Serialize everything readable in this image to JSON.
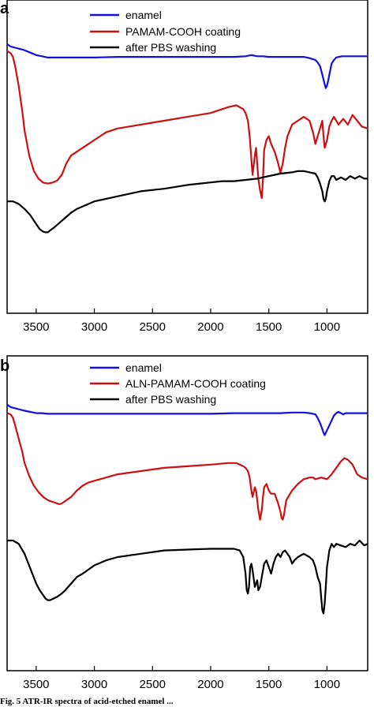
{
  "caption": "Fig. 5 ATR-IR spectra of acid-etched enamel ...",
  "chart_data": [
    {
      "type": "line",
      "panel": "a",
      "xlim": [
        3750,
        650
      ],
      "ylim": [
        0,
        100
      ],
      "xticks": [
        3500,
        3000,
        2500,
        2000,
        1500,
        1000
      ],
      "xlabel": "",
      "ylabel": "",
      "legend_position": "top-right",
      "series": [
        {
          "name": "enamel",
          "color": "#1010e0",
          "x": [
            3750,
            3720,
            3680,
            3640,
            3600,
            3550,
            3500,
            3450,
            3400,
            3300,
            3200,
            3000,
            2800,
            2600,
            2400,
            2200,
            2000,
            1800,
            1700,
            1650,
            1600,
            1550,
            1500,
            1450,
            1400,
            1300,
            1250,
            1200,
            1150,
            1100,
            1080,
            1060,
            1040,
            1020,
            1010,
            1000,
            990,
            980,
            960,
            940,
            920,
            900,
            870,
            840,
            800,
            760,
            720,
            680,
            650
          ],
          "y": [
            93,
            91,
            90,
            89,
            88,
            86,
            84,
            83,
            82,
            82,
            82,
            82,
            82.5,
            82.5,
            82.5,
            82.5,
            82.5,
            82.5,
            83,
            84,
            83,
            83,
            82.5,
            82.5,
            82.5,
            82.5,
            82.5,
            82.5,
            81.5,
            80,
            78,
            75,
            68,
            60,
            57,
            59,
            63,
            68,
            77,
            80,
            82,
            82.5,
            83,
            83,
            83,
            83,
            83,
            83,
            83
          ]
        },
        {
          "name": "PAMAM-COOH coating",
          "color": "#cc1010",
          "x": [
            3750,
            3720,
            3700,
            3680,
            3650,
            3620,
            3600,
            3560,
            3520,
            3480,
            3440,
            3400,
            3360,
            3320,
            3280,
            3240,
            3200,
            3150,
            3100,
            3050,
            3000,
            2900,
            2800,
            2600,
            2400,
            2200,
            2000,
            1850,
            1780,
            1750,
            1720,
            1700,
            1680,
            1665,
            1650,
            1640,
            1620,
            1610,
            1600,
            1590,
            1575,
            1560,
            1550,
            1540,
            1520,
            1500,
            1480,
            1450,
            1420,
            1400,
            1380,
            1360,
            1340,
            1320,
            1300,
            1250,
            1200,
            1150,
            1120,
            1100,
            1080,
            1060,
            1040,
            1030,
            1020,
            1000,
            980,
            960,
            940,
            920,
            900,
            860,
            820,
            780,
            740,
            700,
            650
          ],
          "y": [
            96,
            95,
            93,
            88,
            78,
            65,
            55,
            42,
            34,
            30,
            28,
            27.5,
            28,
            29,
            32,
            38,
            42,
            44,
            46,
            48,
            50,
            54,
            56,
            58,
            60,
            62,
            64,
            67,
            68,
            67,
            66,
            64,
            60,
            52,
            40,
            32,
            42,
            46,
            38,
            30,
            24,
            20,
            30,
            45,
            50,
            52,
            48,
            44,
            38,
            33,
            38,
            46,
            52,
            55,
            58,
            60,
            62,
            60,
            54,
            48,
            52,
            56,
            60,
            52,
            46,
            50,
            57,
            60,
            62,
            60,
            58,
            61,
            58,
            63,
            60,
            57,
            56
          ]
        },
        {
          "name": "after PBS washing",
          "color": "#000000",
          "x": [
            3750,
            3700,
            3650,
            3600,
            3550,
            3500,
            3470,
            3440,
            3420,
            3400,
            3380,
            3350,
            3300,
            3250,
            3200,
            3150,
            3100,
            3000,
            2800,
            2600,
            2400,
            2200,
            2000,
            1900,
            1800,
            1700,
            1600,
            1500,
            1400,
            1300,
            1250,
            1200,
            1150,
            1100,
            1080,
            1060,
            1040,
            1030,
            1020,
            1010,
            1000,
            990,
            980,
            960,
            940,
            920,
            880,
            840,
            800,
            760,
            720,
            680,
            650
          ],
          "y": [
            28,
            28,
            26,
            22,
            17,
            10,
            6,
            4,
            3.5,
            3.5,
            5,
            7,
            11,
            15,
            19,
            22,
            24,
            28,
            32,
            36,
            38,
            41,
            43,
            44,
            44,
            45,
            46,
            48,
            50,
            51,
            52,
            52,
            51,
            50,
            47,
            42,
            36,
            30,
            28,
            30,
            36,
            40,
            44,
            48,
            48,
            45,
            47,
            45,
            48,
            46,
            48,
            46,
            46
          ]
        }
      ]
    },
    {
      "type": "line",
      "panel": "b",
      "xlim": [
        3750,
        650
      ],
      "ylim": [
        0,
        100
      ],
      "xticks": [
        3500,
        3000,
        2500,
        2000,
        1500,
        1000
      ],
      "xlabel": "",
      "ylabel": "",
      "legend_position": "top-right",
      "series": [
        {
          "name": "enamel",
          "color": "#1010e0",
          "x": [
            3750,
            3720,
            3680,
            3640,
            3600,
            3550,
            3500,
            3450,
            3400,
            3300,
            3200,
            3000,
            2800,
            2600,
            2400,
            2200,
            2000,
            1800,
            1600,
            1400,
            1300,
            1200,
            1150,
            1100,
            1080,
            1060,
            1040,
            1030,
            1020,
            1000,
            980,
            960,
            940,
            920,
            900,
            880,
            860,
            840,
            800,
            760,
            720,
            680,
            650
          ],
          "y": [
            95,
            93,
            92,
            91,
            90,
            89,
            88,
            88,
            87.5,
            87.5,
            87.5,
            87.5,
            87.5,
            87.5,
            87.5,
            87.5,
            87.5,
            88,
            88,
            88,
            88.5,
            88.5,
            88,
            87,
            84,
            80,
            75,
            72,
            70,
            74,
            78,
            82,
            86,
            88,
            89,
            88,
            87,
            88,
            88,
            88,
            88,
            88,
            88
          ]
        },
        {
          "name": "ALN-PAMAM-COOH coating",
          "color": "#cc1010",
          "x": [
            3750,
            3720,
            3700,
            3680,
            3650,
            3620,
            3600,
            3560,
            3520,
            3480,
            3440,
            3400,
            3360,
            3320,
            3300,
            3280,
            3240,
            3200,
            3150,
            3100,
            3050,
            3000,
            2900,
            2800,
            2600,
            2400,
            2200,
            2000,
            1850,
            1780,
            1750,
            1720,
            1700,
            1680,
            1665,
            1650,
            1640,
            1620,
            1610,
            1600,
            1590,
            1575,
            1560,
            1550,
            1540,
            1520,
            1500,
            1480,
            1450,
            1420,
            1400,
            1390,
            1380,
            1370,
            1350,
            1300,
            1250,
            1200,
            1150,
            1120,
            1100,
            1050,
            1000,
            960,
            920,
            880,
            850,
            820,
            780,
            740,
            700,
            650
          ],
          "y": [
            96,
            95,
            93,
            88,
            80,
            72,
            65,
            57,
            51,
            47,
            44,
            42,
            41,
            40,
            39.5,
            40,
            42,
            44,
            48,
            51,
            53,
            54,
            56,
            58,
            60,
            62,
            63,
            64,
            65,
            65,
            64,
            63,
            62,
            60,
            56,
            48,
            44,
            50,
            48,
            42,
            36,
            30,
            36,
            44,
            50,
            52,
            48,
            46,
            46,
            40,
            35,
            31,
            30,
            33,
            42,
            48,
            52,
            55,
            56,
            56,
            55,
            56,
            55,
            58,
            62,
            66,
            68,
            67,
            64,
            58,
            56,
            55
          ]
        },
        {
          "name": "after PBS washing",
          "color": "#000000",
          "x": [
            3750,
            3700,
            3650,
            3600,
            3550,
            3500,
            3470,
            3440,
            3420,
            3400,
            3380,
            3350,
            3320,
            3300,
            3280,
            3250,
            3200,
            3150,
            3100,
            3000,
            2900,
            2800,
            2600,
            2400,
            2200,
            2000,
            1900,
            1800,
            1750,
            1720,
            1700,
            1690,
            1680,
            1670,
            1660,
            1650,
            1640,
            1620,
            1600,
            1590,
            1575,
            1560,
            1550,
            1540,
            1520,
            1500,
            1480,
            1460,
            1440,
            1420,
            1400,
            1380,
            1360,
            1340,
            1320,
            1300,
            1280,
            1250,
            1200,
            1150,
            1120,
            1100,
            1080,
            1060,
            1050,
            1040,
            1030,
            1020,
            1010,
            1000,
            980,
            960,
            940,
            920,
            880,
            840,
            800,
            760,
            720,
            680,
            650
          ],
          "y": [
            50,
            50,
            48,
            42,
            33,
            24,
            20,
            17,
            15,
            14,
            14,
            15,
            16,
            17,
            18,
            20,
            24,
            28,
            30,
            35,
            38,
            40,
            42,
            44,
            44.5,
            45,
            45,
            45,
            44,
            40,
            30,
            20,
            18,
            22,
            34,
            36,
            32,
            22,
            26,
            20,
            22,
            28,
            32,
            36,
            38,
            34,
            30,
            36,
            40,
            42,
            40,
            43,
            44,
            42,
            40,
            36,
            38,
            40,
            42,
            40,
            38,
            34,
            28,
            24,
            16,
            8,
            6,
            12,
            22,
            34,
            44,
            48,
            46,
            48,
            47,
            46,
            48,
            47,
            50,
            47,
            48
          ]
        }
      ]
    }
  ]
}
